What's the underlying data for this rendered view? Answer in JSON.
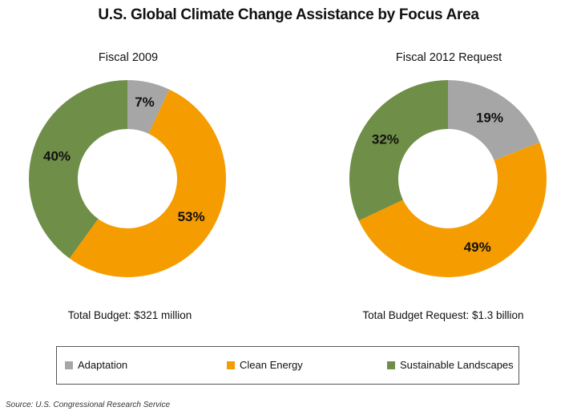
{
  "title": "U.S. Global Climate Change Assistance by Focus Area",
  "colors": {
    "adaptation": "#a6a6a6",
    "clean_energy": "#f59c00",
    "sustainable_landscapes": "#6f8e48"
  },
  "chart_data": [
    {
      "type": "pie",
      "title": "Fiscal 2009",
      "categories": [
        "Adaptation",
        "Clean Energy",
        "Sustainable Landscapes"
      ],
      "values": [
        7,
        53,
        40
      ],
      "labels": [
        "7%",
        "53%",
        "40%"
      ],
      "note": "Total Budget: $321 million"
    },
    {
      "type": "pie",
      "title": "Fiscal 2012 Request",
      "categories": [
        "Adaptation",
        "Clean Energy",
        "Sustainable Landscapes"
      ],
      "values": [
        19,
        49,
        32
      ],
      "labels": [
        "19%",
        "49%",
        "32%"
      ],
      "note": "Total Budget Request: $1.3 billion"
    }
  ],
  "legend": [
    {
      "label": "Adaptation",
      "color": "#a6a6a6"
    },
    {
      "label": "Clean Energy",
      "color": "#f59c00"
    },
    {
      "label": "Sustainable Landscapes",
      "color": "#6f8e48"
    }
  ],
  "source": "Source: U.S. Congressional Research Service"
}
